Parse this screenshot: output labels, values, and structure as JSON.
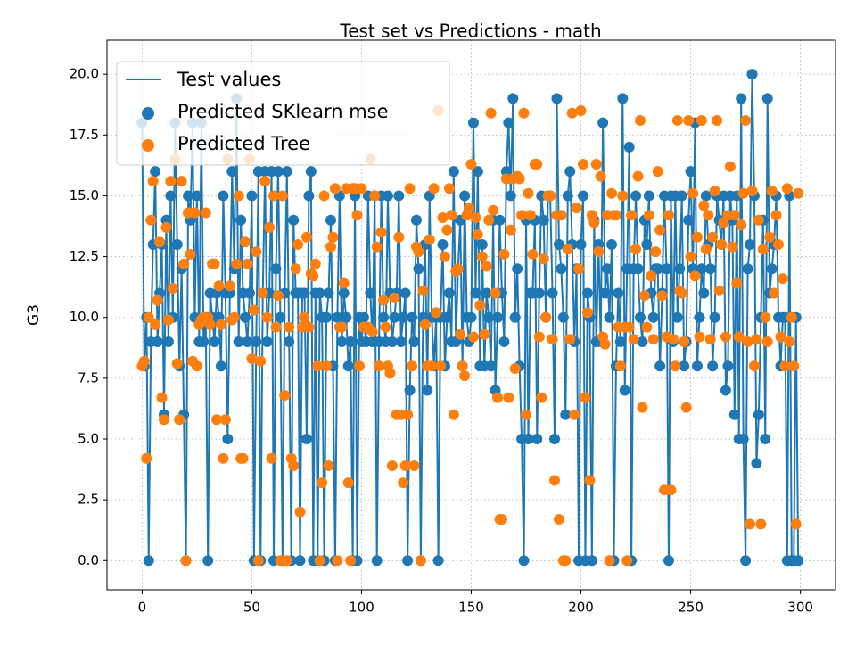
{
  "chart_data": {
    "type": "line",
    "title": "Test set vs Predictions - math",
    "ylabel": "G3",
    "xlim": [
      -16,
      316
    ],
    "ylim": [
      -1.2,
      21.4
    ],
    "xticks": [
      0,
      50,
      100,
      150,
      200,
      250,
      300
    ],
    "yticks": [
      {
        "value": 0,
        "label": "0.0"
      },
      {
        "value": 2.5,
        "label": "2.5"
      },
      {
        "value": 5,
        "label": "5.0"
      },
      {
        "value": 7.5,
        "label": "7.5"
      },
      {
        "value": 10,
        "label": "10.0"
      },
      {
        "value": 12.5,
        "label": "12.5"
      },
      {
        "value": 15,
        "label": "15.0"
      },
      {
        "value": 17.5,
        "label": "17.5"
      },
      {
        "value": 20,
        "label": "20.0"
      }
    ],
    "grid": true,
    "legend": "upper left",
    "x": [
      0,
      1,
      2,
      3,
      4,
      5,
      6,
      7,
      8,
      9,
      10,
      11,
      12,
      13,
      14,
      15,
      16,
      17,
      18,
      19,
      20,
      21,
      22,
      23,
      24,
      25,
      26,
      27,
      28,
      29,
      30,
      31,
      32,
      33,
      34,
      35,
      36,
      37,
      38,
      39,
      40,
      41,
      42,
      43,
      44,
      45,
      46,
      47,
      48,
      49,
      50,
      51,
      52,
      53,
      54,
      55,
      56,
      57,
      58,
      59,
      60,
      61,
      62,
      63,
      64,
      65,
      66,
      67,
      68,
      69,
      70,
      71,
      72,
      73,
      74,
      75,
      76,
      77,
      78,
      79,
      80,
      81,
      82,
      83,
      84,
      85,
      86,
      87,
      88,
      89,
      90,
      91,
      92,
      93,
      94,
      95,
      96,
      97,
      98,
      99,
      100,
      101,
      102,
      103,
      104,
      105,
      106,
      107,
      108,
      109,
      110,
      111,
      112,
      113,
      114,
      115,
      116,
      117,
      118,
      119,
      120,
      121,
      122,
      123,
      124,
      125,
      126,
      127,
      128,
      129,
      130,
      131,
      132,
      133,
      134,
      135,
      136,
      137,
      138,
      139,
      140,
      141,
      142,
      143,
      144,
      145,
      146,
      147,
      148,
      149,
      150,
      151,
      152,
      153,
      154,
      155,
      156,
      157,
      158,
      159,
      160,
      161,
      162,
      163,
      164,
      165,
      166,
      167,
      168,
      169,
      170,
      171,
      172,
      173,
      174,
      175,
      176,
      177,
      178,
      179,
      180,
      181,
      182,
      183,
      184,
      185,
      186,
      187,
      188,
      189,
      190,
      191,
      192,
      193,
      194,
      195,
      196,
      197,
      198,
      199,
      200,
      201,
      202,
      203,
      204,
      205,
      206,
      207,
      208,
      209,
      210,
      211,
      212,
      213,
      214,
      215,
      216,
      217,
      218,
      219,
      220,
      221,
      222,
      223,
      224,
      225,
      226,
      227,
      228,
      229,
      230,
      231,
      232,
      233,
      234,
      235,
      236,
      237,
      238,
      239,
      240,
      241,
      242,
      243,
      244,
      245,
      246,
      247,
      248,
      249,
      250,
      251,
      252,
      253,
      254,
      255,
      256,
      257,
      258,
      259,
      260,
      261,
      262,
      263,
      264,
      265,
      266,
      267,
      268,
      269,
      270,
      271,
      272,
      273,
      274,
      275,
      276,
      277,
      278,
      279,
      280,
      281,
      282,
      283,
      284,
      285,
      286,
      287,
      288,
      289,
      290,
      291,
      292,
      293,
      294,
      295,
      296,
      297,
      298,
      299
    ],
    "series": [
      {
        "name": "Test values",
        "type": "line",
        "color": "#1f77b4",
        "values": [
          18,
          8,
          10,
          0,
          9,
          13,
          16,
          9,
          11,
          13,
          6,
          14,
          9,
          15,
          10,
          18,
          13,
          8,
          12,
          6,
          0,
          15,
          14,
          18,
          10,
          15,
          9,
          18,
          9,
          10,
          0,
          11,
          10,
          9,
          11,
          10,
          8,
          15,
          11,
          5,
          11,
          16,
          12,
          19,
          9,
          14,
          11,
          10,
          9,
          11,
          15,
          0,
          9,
          16,
          0,
          11,
          16,
          9,
          11,
          16,
          0,
          12,
          16,
          10,
          0,
          11,
          16,
          9,
          0,
          14,
          11,
          11,
          0,
          11,
          11,
          5,
          15,
          16,
          0,
          11,
          0,
          11,
          10,
          0,
          10,
          11,
          14,
          8,
          0,
          10,
          15,
          9,
          11,
          10,
          8,
          9,
          0,
          15,
          0,
          10,
          9,
          10,
          9,
          15,
          11,
          9,
          15,
          0,
          9,
          15,
          10,
          9,
          15,
          11,
          9,
          10,
          11,
          15,
          9,
          10,
          11,
          0,
          7,
          10,
          9,
          14,
          12,
          0,
          10,
          13,
          7,
          15,
          10,
          8,
          10,
          0,
          10,
          13,
          8,
          10,
          11,
          9,
          16,
          9,
          12,
          14,
          8,
          15,
          10,
          9,
          10,
          18,
          11,
          16,
          8,
          13,
          8,
          11,
          10,
          8,
          14,
          7,
          10,
          14,
          11,
          9,
          16,
          18,
          15,
          19,
          10,
          12,
          8,
          5,
          0,
          14,
          5,
          11,
          11,
          14,
          5,
          11,
          15,
          14,
          10,
          15,
          15,
          11,
          5,
          19,
          13,
          12,
          10,
          6,
          15,
          16,
          13,
          9,
          12,
          0,
          13,
          15,
          0,
          11,
          10,
          0,
          14,
          9,
          13,
          9,
          18,
          11,
          12,
          10,
          13,
          0,
          8,
          11,
          9,
          19,
          7,
          12,
          17,
          0,
          12,
          15,
          12,
          10,
          9,
          14,
          13,
          15,
          11,
          10,
          12,
          12,
          8,
          11,
          15,
          12,
          0,
          15,
          9,
          15,
          10,
          12,
          15,
          8,
          9,
          14,
          16,
          12,
          18,
          8,
          10,
          12,
          11,
          15,
          13,
          12,
          8,
          10,
          15,
          14,
          13,
          15,
          7,
          8,
          15,
          14,
          6,
          15,
          5,
          19,
          5,
          0,
          12,
          13,
          20,
          15,
          4,
          6,
          10,
          14,
          5,
          19,
          11,
          12,
          13,
          15,
          10,
          8,
          10,
          10,
          0,
          15,
          0,
          0,
          10,
          0
        ]
      },
      {
        "name": "Predicted SKlearn mse",
        "type": "scatter",
        "color": "#1f77b4",
        "values": [
          18,
          8,
          10,
          0,
          9,
          13,
          16,
          9,
          11,
          13,
          6,
          14,
          9,
          15,
          10,
          18,
          13,
          8,
          12,
          6,
          0,
          15,
          14,
          18,
          10,
          15,
          9,
          18,
          9,
          10,
          0,
          11,
          10,
          9,
          11,
          10,
          8,
          15,
          11,
          5,
          11,
          16,
          12,
          19,
          9,
          14,
          11,
          10,
          9,
          11,
          15,
          0,
          9,
          16,
          0,
          11,
          16,
          9,
          11,
          16,
          0,
          12,
          16,
          10,
          0,
          11,
          16,
          9,
          0,
          14,
          11,
          11,
          0,
          11,
          11,
          5,
          15,
          16,
          0,
          11,
          0,
          11,
          10,
          0,
          10,
          11,
          14,
          8,
          0,
          10,
          15,
          9,
          11,
          10,
          8,
          9,
          0,
          15,
          0,
          10,
          9,
          10,
          9,
          15,
          11,
          9,
          15,
          0,
          9,
          15,
          10,
          9,
          15,
          11,
          9,
          10,
          11,
          15,
          9,
          10,
          11,
          0,
          7,
          10,
          9,
          14,
          12,
          0,
          10,
          13,
          7,
          15,
          10,
          8,
          10,
          0,
          10,
          13,
          8,
          10,
          11,
          9,
          16,
          9,
          12,
          14,
          8,
          15,
          10,
          9,
          10,
          18,
          11,
          16,
          8,
          13,
          8,
          11,
          10,
          8,
          14,
          7,
          10,
          14,
          11,
          9,
          16,
          18,
          15,
          19,
          10,
          12,
          8,
          5,
          0,
          14,
          5,
          11,
          11,
          14,
          5,
          11,
          15,
          14,
          10,
          15,
          15,
          11,
          5,
          19,
          13,
          12,
          10,
          6,
          15,
          16,
          13,
          9,
          12,
          0,
          13,
          15,
          0,
          11,
          10,
          0,
          14,
          9,
          13,
          9,
          18,
          11,
          12,
          10,
          13,
          0,
          8,
          11,
          9,
          19,
          7,
          12,
          17,
          0,
          12,
          15,
          12,
          10,
          9,
          14,
          13,
          15,
          11,
          10,
          12,
          12,
          8,
          11,
          15,
          12,
          0,
          15,
          9,
          15,
          10,
          12,
          15,
          8,
          9,
          14,
          16,
          12,
          18,
          8,
          10,
          12,
          11,
          15,
          13,
          12,
          8,
          10,
          15,
          14,
          13,
          15,
          7,
          8,
          15,
          14,
          6,
          15,
          5,
          19,
          5,
          0,
          12,
          13,
          20,
          15,
          4,
          6,
          10,
          14,
          5,
          19,
          11,
          12,
          13,
          15,
          10,
          8,
          10,
          10,
          0,
          15,
          0,
          0,
          10,
          0
        ]
      },
      {
        "name": "Predicted Tree",
        "type": "scatter",
        "color": "#ff7f0e",
        "values": [
          8.0,
          8.2,
          4.2,
          10.0,
          14.0,
          15.6,
          9.7,
          10.7,
          13.1,
          6.7,
          5.8,
          13.7,
          9.9,
          15.6,
          11.2,
          16.5,
          8.1,
          5.8,
          15.6,
          12.2,
          0.0,
          14.3,
          12.6,
          8.2,
          14.3,
          8.0,
          9.7,
          9.9,
          10.0,
          14.3,
          10.0,
          9.7,
          12.2,
          12.2,
          5.8,
          11.3,
          9.7,
          4.2,
          5.8,
          16.5,
          11.3,
          9.9,
          10.0,
          12.2,
          15.0,
          4.2,
          4.2,
          13.1,
          12.2,
          16.5,
          8.3,
          10.3,
          12.7,
          0.0,
          8.2,
          11.0,
          15.6,
          10.0,
          13.7,
          4.2,
          15.0,
          9.6,
          10.9,
          0.0,
          15.0,
          6.8,
          0.0,
          9.6,
          4.2,
          3.9,
          12.0,
          13.0,
          2.0,
          9.6,
          10.0,
          13.3,
          9.6,
          11.8,
          11.7,
          12.2,
          8.0,
          0.0,
          3.2,
          15.0,
          8.0,
          3.9,
          12.9,
          13.3,
          15.3,
          0.0,
          9.6,
          9.6,
          11.4,
          15.3,
          3.2,
          0.0,
          15.3,
          15.3,
          14.2,
          8.0,
          15.3,
          9.6,
          9.6,
          9.6,
          16.5,
          9.4,
          15.0,
          12.9,
          8.0,
          13.5,
          10.7,
          9.6,
          8.0,
          7.7,
          3.9,
          10.8,
          6.0,
          13.3,
          6.0,
          3.2,
          3.9,
          6.0,
          15.3,
          8.0,
          3.9,
          12.9,
          12.7,
          0.0,
          11.1,
          9.7,
          8.0,
          13.2,
          8.0,
          15.3,
          10.2,
          18.5,
          8.0,
          14.1,
          12.5,
          13.6,
          15.3,
          14.2,
          6.0,
          11.9,
          12.0,
          9.3,
          8.0,
          7.6,
          14.2,
          14.5,
          16.3,
          9.2,
          14.1,
          13.4,
          10.5,
          12.5,
          9.3,
          12.1,
          14.0,
          18.4,
          14.4,
          11.0,
          6.7,
          1.7,
          1.7,
          12.6,
          15.7,
          6.7,
          13.6,
          15.7,
          7.9,
          15.8,
          15.7,
          14.2,
          18.4,
          6.0,
          15.1,
          14.2,
          12.6,
          16.3,
          16.3,
          9.2,
          6.7,
          12.4,
          10.0,
          15.0,
          15.0,
          9.1,
          3.3,
          14.2,
          1.7,
          14.2,
          0.0,
          0.0,
          12.8,
          9.1,
          18.4,
          6.0,
          14.5,
          12.0,
          18.5,
          16.3,
          6.7,
          10.2,
          3.3,
          14.2,
          13.9,
          16.3,
          12.7,
          15.8,
          9.2,
          8.9,
          14.2,
          0.0,
          15.1,
          14.2,
          14.2,
          9.6,
          8.0,
          15.0,
          9.6,
          0.0,
          9.6,
          14.2,
          9.1,
          12.8,
          15.8,
          18.1,
          6.3,
          10.9,
          9.6,
          14.2,
          11.7,
          9.1,
          12.7,
          16.0,
          13.6,
          10.9,
          2.9,
          9.2,
          14.2,
          2.9,
          9.1,
          8.0,
          18.1,
          11.1,
          11.0,
          9.0,
          6.3,
          18.1,
          12.5,
          15.1,
          11.7,
          13.3,
          9.2,
          18.1,
          14.6,
          12.8,
          14.2,
          9.1,
          13.3,
          15.2,
          18.1,
          11.1,
          13.0,
          13.9,
          9.2,
          14.2,
          16.2,
          12.9,
          14.2,
          11.4,
          9.2,
          13.8,
          15.1,
          18.1,
          9.0,
          1.5,
          15.2,
          8.0,
          9.1,
          14.0,
          1.5,
          12.8,
          10.0,
          9.0,
          13.3,
          15.2,
          11.0,
          14.2,
          13.0,
          9.2,
          11.6,
          8.0,
          15.3,
          9.0,
          10.0,
          8.0,
          1.5,
          15.1
        ]
      }
    ]
  }
}
